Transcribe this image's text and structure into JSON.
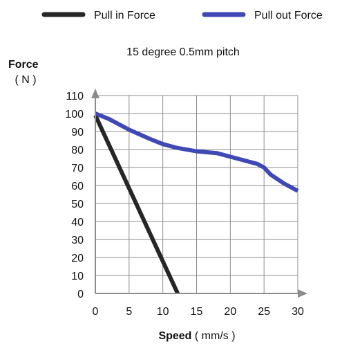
{
  "chart_data": {
    "type": "line",
    "title": "15 degree 0.5mm pitch",
    "xlabel": {
      "bold": "Speed",
      "unit": "( mm/s )"
    },
    "ylabel": {
      "bold": "Force",
      "unit": "( N )"
    },
    "xlim": [
      0,
      30
    ],
    "ylim": [
      0,
      110
    ],
    "xticks": [
      0,
      5,
      10,
      15,
      20,
      25,
      30
    ],
    "yticks": [
      0,
      10,
      20,
      30,
      40,
      50,
      60,
      70,
      80,
      90,
      100,
      110
    ],
    "grid": true,
    "legend_position": "top",
    "series": [
      {
        "name": "Pull in Force",
        "color": "#262626",
        "x": [
          0,
          12.2
        ],
        "y": [
          99,
          0
        ]
      },
      {
        "name": "Pull out Force",
        "color": "#3f48b5",
        "x": [
          0,
          2,
          5,
          8,
          10,
          12,
          15,
          18,
          20,
          22,
          24,
          25,
          26,
          28,
          30
        ],
        "y": [
          100,
          97,
          91,
          86,
          83,
          81,
          79,
          78,
          76,
          74,
          72,
          70,
          66,
          61,
          57
        ]
      }
    ]
  }
}
